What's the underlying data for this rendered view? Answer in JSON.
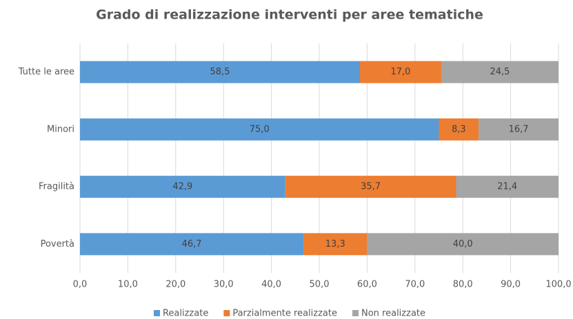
{
  "chart_data": {
    "type": "bar",
    "orientation": "horizontal",
    "stacked": true,
    "title": "Grado di realizzazione interventi per aree tematiche",
    "categories": [
      "Tutte le aree",
      "Minori",
      "Fragilità",
      "Povertà"
    ],
    "series": [
      {
        "name": "Realizzate",
        "color": "#5b9bd5",
        "values": [
          58.5,
          75.0,
          42.9,
          46.7
        ],
        "value_labels": [
          "58,5",
          "75,0",
          "42,9",
          "46,7"
        ]
      },
      {
        "name": "Parzialmente realizzate",
        "color": "#ed7d31",
        "values": [
          17.0,
          8.3,
          35.7,
          13.3
        ],
        "value_labels": [
          "17,0",
          "8,3",
          "35,7",
          "13,3"
        ]
      },
      {
        "name": "Non realizzate",
        "color": "#a5a5a5",
        "values": [
          24.5,
          16.7,
          21.4,
          40.0
        ],
        "value_labels": [
          "24,5",
          "16,7",
          "21,4",
          "40,0"
        ]
      }
    ],
    "xlim": [
      0,
      100
    ],
    "xticks": [
      {
        "value": 0,
        "label": "0,0"
      },
      {
        "value": 10,
        "label": "10,0"
      },
      {
        "value": 20,
        "label": "20,0"
      },
      {
        "value": 30,
        "label": "30,0"
      },
      {
        "value": 40,
        "label": "40,0"
      },
      {
        "value": 50,
        "label": "50,0"
      },
      {
        "value": 60,
        "label": "60,0"
      },
      {
        "value": 70,
        "label": "70,0"
      },
      {
        "value": 80,
        "label": "80,0"
      },
      {
        "value": 90,
        "label": "90,0"
      },
      {
        "value": 100,
        "label": "100,0"
      }
    ],
    "grid": true,
    "legend": "bottom"
  }
}
